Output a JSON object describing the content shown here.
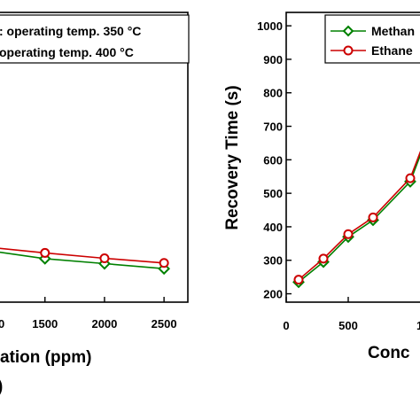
{
  "chart_data": [
    {
      "type": "line",
      "title": "",
      "xlabel": "ation (ppm)",
      "xlabel_line2": ")",
      "ylabel": "",
      "xlim": [
        1100,
        2700
      ],
      "ylim": [
        175,
        1040
      ],
      "xticks": [
        1500,
        2000,
        2500
      ],
      "xtick_labels": [
        "1500",
        "2000",
        "2500"
      ],
      "x_partial_tick_label": "0",
      "yticks": [],
      "grid": false,
      "legend": {
        "placement": "top-left",
        "entries": [
          ": operating temp. 350 °C",
          "operating temp. 400 °C"
        ]
      },
      "series": [
        {
          "x": [
            1000,
            1500,
            2000,
            2500
          ],
          "values": [
            330,
            305,
            290,
            275
          ],
          "color": "#008000",
          "marker": "diamond"
        },
        {
          "x": [
            1000,
            1500,
            2000,
            2500
          ],
          "values": [
            340,
            322,
            306,
            292
          ],
          "color": "#cc0000",
          "marker": "circle"
        }
      ]
    },
    {
      "type": "line",
      "title": "",
      "xlabel": "Conc",
      "ylabel": "Recovery Time (s)",
      "xlim": [
        0,
        1100
      ],
      "ylim": [
        175,
        1040
      ],
      "xticks": [
        0,
        500
      ],
      "xtick_labels": [
        "0",
        "500"
      ],
      "x_partial_tick_label": "1",
      "yticks": [
        200,
        300,
        400,
        500,
        600,
        700,
        800,
        900,
        1000
      ],
      "grid": false,
      "legend": {
        "placement": "top-left",
        "entries": [
          "Methan",
          "Ethane"
        ]
      },
      "series": [
        {
          "name": "Methan",
          "x": [
            100,
            300,
            500,
            700,
            1000,
            1150
          ],
          "values": [
            235,
            295,
            370,
            420,
            535,
            680
          ],
          "color": "#008000",
          "marker": "diamond"
        },
        {
          "name": "Ethane",
          "x": [
            100,
            300,
            500,
            700,
            1000,
            1150
          ],
          "values": [
            242,
            305,
            378,
            428,
            545,
            690
          ],
          "color": "#cc0000",
          "marker": "circle"
        }
      ]
    }
  ]
}
